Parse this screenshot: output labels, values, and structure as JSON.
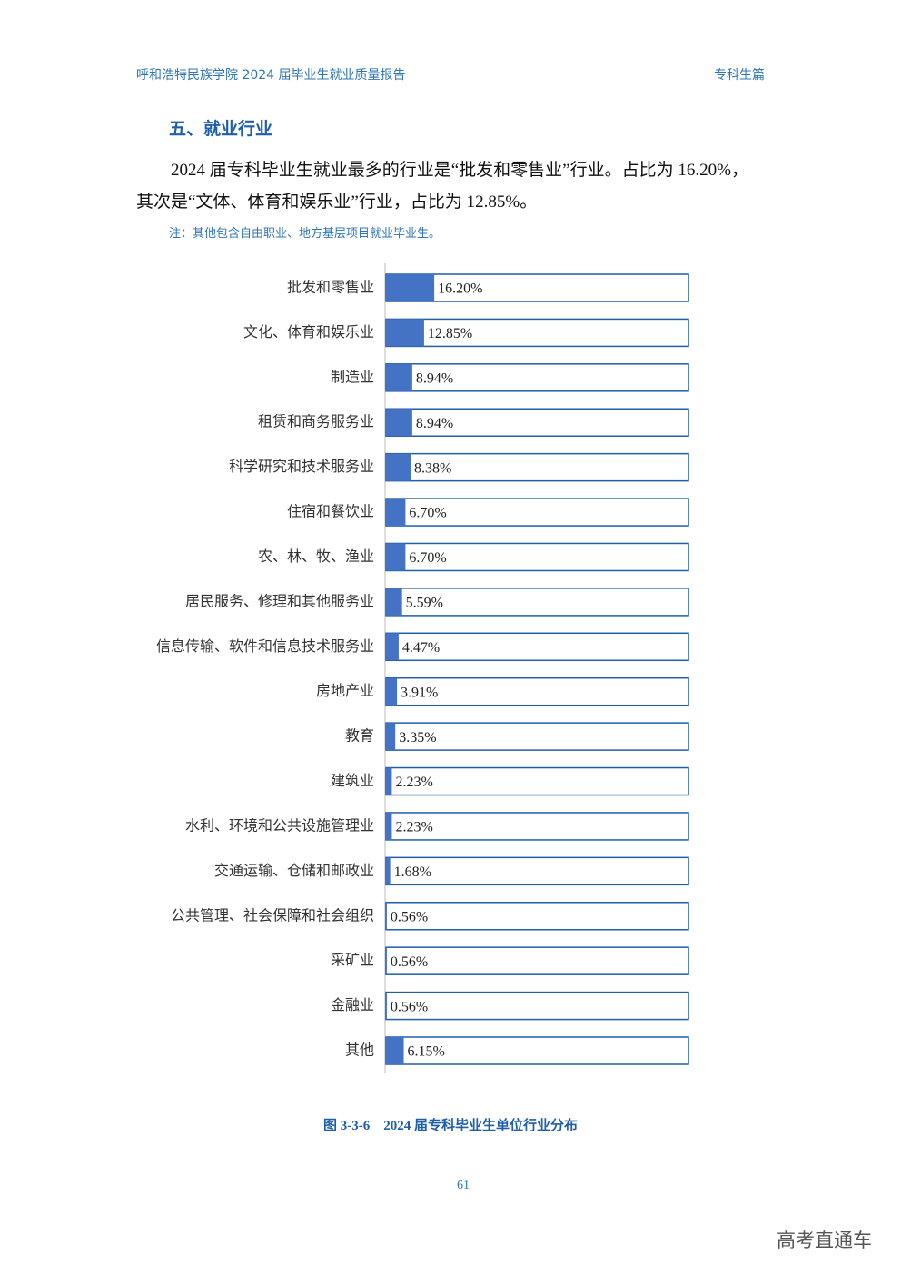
{
  "header": {
    "left": "呼和浩特民族学院 2024 届毕业生就业质量报告",
    "right": "专科生篇"
  },
  "section_title": "五、就业行业",
  "paragraph": "2024 届专科毕业生就业最多的行业是“批发和零售业”行业。占比为 16.20%，其次是“文体、体育和娱乐业”行业，占比为 12.85%。",
  "note": "注：其他包含自由职业、地方基层项目就业毕业生。",
  "chart_data": {
    "type": "bar",
    "orientation": "horizontal",
    "color": "#4472c4",
    "categories": [
      "批发和零售业",
      "文化、体育和娱乐业",
      "制造业",
      "租赁和商务服务业",
      "科学研究和技术服务业",
      "住宿和餐饮业",
      "农、林、牧、渔业",
      "居民服务、修理和其他服务业",
      "信息传输、软件和信息技术服务业",
      "房地产业",
      "教育",
      "建筑业",
      "水利、环境和公共设施管理业",
      "交通运输、仓储和邮政业",
      "公共管理、社会保障和社会组织",
      "采矿业",
      "金融业",
      "其他"
    ],
    "values": [
      16.2,
      12.85,
      8.94,
      8.94,
      8.38,
      6.7,
      6.7,
      5.59,
      4.47,
      3.91,
      3.35,
      2.23,
      2.23,
      1.68,
      0.56,
      0.56,
      0.56,
      6.15
    ],
    "value_labels": [
      "16.20%",
      "12.85%",
      "8.94%",
      "8.94%",
      "8.38%",
      "6.70%",
      "6.70%",
      "5.59%",
      "4.47%",
      "3.91%",
      "3.35%",
      "2.23%",
      "2.23%",
      "1.68%",
      "0.56%",
      "0.56%",
      "0.56%",
      "6.15%"
    ],
    "xlim": [
      0,
      100
    ]
  },
  "caption": "图 3-3-6　2024 届专科毕业生单位行业分布",
  "page_number": "61",
  "watermark": "高考直通车"
}
